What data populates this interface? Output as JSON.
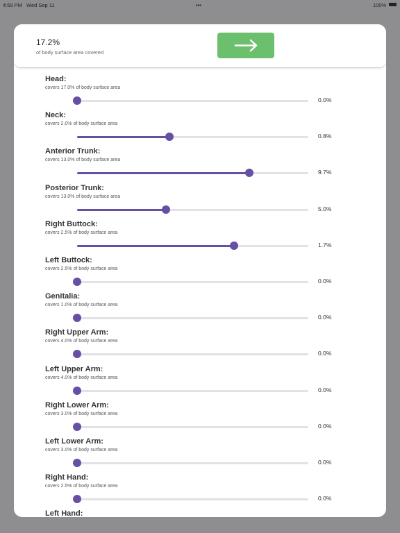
{
  "status_bar": {
    "time": "4:59 PM",
    "date": "Wed Sep 11",
    "battery": "100%"
  },
  "header": {
    "total": "17.2%",
    "caption": "of body surface area covered"
  },
  "items": [
    {
      "label": "Head:",
      "note": "covers 17.0% of body surface area",
      "value": 0.0,
      "value_label": "0.0%",
      "max": 17.0
    },
    {
      "label": "Neck:",
      "note": "covers 2.0% of body surface area",
      "value": 0.8,
      "value_label": "0.8%",
      "max": 2.0
    },
    {
      "label": "Anterior Trunk:",
      "note": "covers 13.0% of body surface area",
      "value": 9.7,
      "value_label": "9.7%",
      "max": 13.0
    },
    {
      "label": "Posterior Trunk:",
      "note": "covers 13.0% of body surface area",
      "value": 5.0,
      "value_label": "5.0%",
      "max": 13.0
    },
    {
      "label": "Right Buttock:",
      "note": "covers 2.5% of body surface area",
      "value": 1.7,
      "value_label": "1.7%",
      "max": 2.5
    },
    {
      "label": "Left Buttock:",
      "note": "covers 2.5% of body surface area",
      "value": 0.0,
      "value_label": "0.0%",
      "max": 2.5
    },
    {
      "label": "Genitalia:",
      "note": "covers 1.0% of body surface area",
      "value": 0.0,
      "value_label": "0.0%",
      "max": 1.0
    },
    {
      "label": "Right Upper Arm:",
      "note": "covers 4.0% of body surface area",
      "value": 0.0,
      "value_label": "0.0%",
      "max": 4.0
    },
    {
      "label": "Left Upper Arm:",
      "note": "covers 4.0% of body surface area",
      "value": 0.0,
      "value_label": "0.0%",
      "max": 4.0
    },
    {
      "label": "Right Lower Arm:",
      "note": "covers 3.0% of body surface area",
      "value": 0.0,
      "value_label": "0.0%",
      "max": 3.0
    },
    {
      "label": "Left Lower Arm:",
      "note": "covers 3.0% of body surface area",
      "value": 0.0,
      "value_label": "0.0%",
      "max": 3.0
    },
    {
      "label": "Right Hand:",
      "note": "covers 2.5% of body surface area",
      "value": 0.0,
      "value_label": "0.0%",
      "max": 2.5
    },
    {
      "label": "Left Hand:"
    }
  ]
}
